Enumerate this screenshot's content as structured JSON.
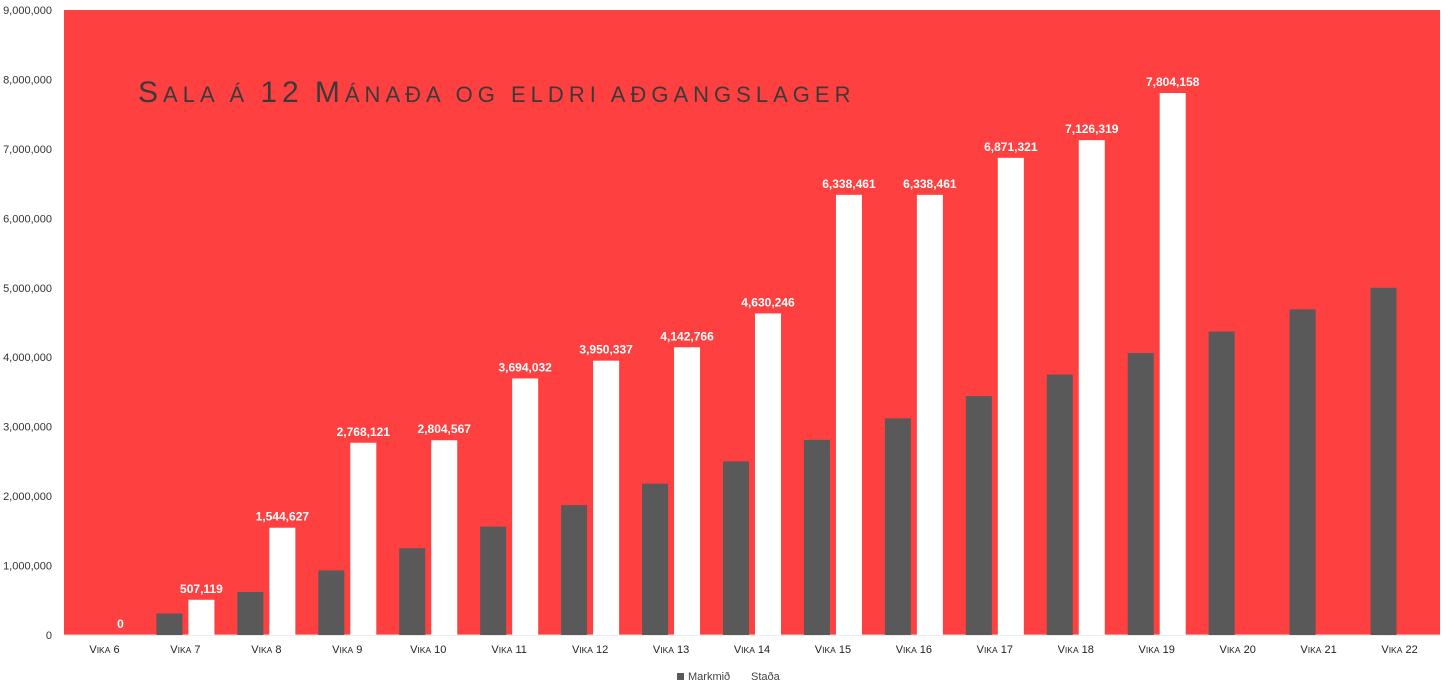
{
  "chart_data": {
    "type": "bar",
    "title": "Sala á 12 Mánaða og eldri aðgangslager",
    "categories": [
      "Vika 6",
      "Vika 7",
      "Vika 8",
      "Vika 9",
      "Vika 10",
      "Vika 11",
      "Vika 12",
      "Vika 13",
      "Vika 14",
      "Vika 15",
      "Vika 16",
      "Vika 17",
      "Vika 18",
      "Vika 19",
      "Vika 20",
      "Vika 21",
      "Vika 22"
    ],
    "series": [
      {
        "name": "Markmið",
        "color": "#595959",
        "values": [
          0,
          310000,
          620000,
          930000,
          1250000,
          1560000,
          1870000,
          2180000,
          2500000,
          2810000,
          3120000,
          3440000,
          3750000,
          4060000,
          4370000,
          4690000,
          5000000
        ]
      },
      {
        "name": "Staða",
        "color": "#ffffff",
        "values": [
          0,
          507119,
          1544627,
          2768121,
          2804567,
          3694032,
          3950337,
          4142766,
          4630246,
          6338461,
          6338461,
          6871321,
          7126319,
          7804158,
          null,
          null,
          null
        ],
        "data_labels": [
          "0",
          "507,119",
          "1,544,627",
          "2,768,121",
          "2,804,567",
          "3,694,032",
          "3,950,337",
          "4,142,766",
          "4,630,246",
          "6,338,461",
          "6,338,461",
          "6,871,321",
          "7,126,319",
          "7,804,158",
          null,
          null,
          null
        ]
      }
    ],
    "y_ticks": [
      "0",
      "1,000,000",
      "2,000,000",
      "3,000,000",
      "4,000,000",
      "5,000,000",
      "6,000,000",
      "7,000,000",
      "8,000,000",
      "9,000,000"
    ],
    "ylim": [
      0,
      9000000
    ],
    "xlabel": "",
    "ylabel": "",
    "grid": false,
    "legend_position": "bottom",
    "plot_background": "#ff4040"
  }
}
